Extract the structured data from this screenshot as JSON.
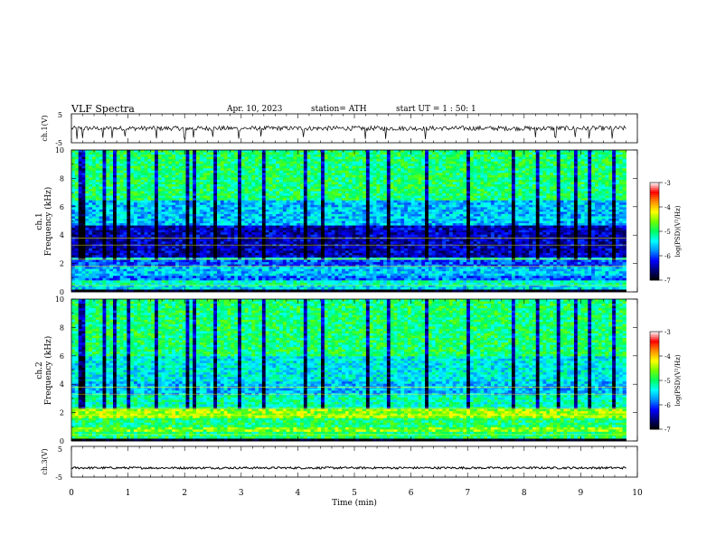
{
  "header": {
    "title": "VLF  Spectra",
    "date": "Apr. 10, 2023",
    "station": "station= ATH",
    "start": "start  UT  =   1  : 50: 1"
  },
  "chart_data": [
    {
      "type": "line",
      "name": "ch1-voltage",
      "ylabel": "ch.1(V)",
      "ylim": [
        -5,
        5
      ],
      "yticks": [
        "5",
        "-5"
      ],
      "xlim": [
        0,
        10
      ],
      "data_end_min": 9.8,
      "baseline": 0.0,
      "noise_amp": 0.8,
      "spikes": [
        0.1,
        0.2,
        0.55,
        0.72,
        0.95,
        1.5,
        2.0,
        2.15,
        2.5,
        2.95,
        3.35,
        4.1,
        5.2,
        5.55,
        6.25,
        8.2,
        8.55,
        8.9,
        9.15,
        9.55
      ],
      "color": "#000000"
    },
    {
      "type": "heatmap",
      "name": "ch1-spectrogram",
      "ylabel": "Frequency (kHz)",
      "channel_label": "ch.1",
      "ylim": [
        0,
        10
      ],
      "yticks": [
        "0",
        "2",
        "4",
        "6",
        "8",
        "10"
      ],
      "xlim": [
        0,
        10
      ],
      "data_end_min": 9.8,
      "bands_khz_to_logpsd": [
        [
          0.0,
          0.2,
          -7.0
        ],
        [
          0.2,
          0.45,
          -5.5
        ],
        [
          0.45,
          0.8,
          -5.2
        ],
        [
          0.8,
          1.2,
          -5.9
        ],
        [
          1.2,
          1.8,
          -5.6
        ],
        [
          1.8,
          2.2,
          -6.0
        ],
        [
          2.2,
          2.5,
          -5.3
        ],
        [
          2.5,
          4.6,
          -6.4
        ],
        [
          4.6,
          6.5,
          -5.6
        ],
        [
          6.5,
          10.0,
          -5.0
        ]
      ],
      "vertical_streaks_min": [
        0.1,
        0.2,
        0.55,
        0.72,
        0.95,
        1.5,
        2.0,
        2.15,
        2.5,
        2.95,
        3.35,
        4.1,
        4.4,
        5.2,
        5.55,
        6.25,
        7.0,
        7.75,
        8.2,
        8.55,
        8.9,
        9.15,
        9.55
      ],
      "colorbar": {
        "label": "log(PSD)(V²/Hz)",
        "range": [
          -7,
          -3
        ],
        "ticks": [
          "-3",
          "-4",
          "-5",
          "-6",
          "-7"
        ]
      }
    },
    {
      "type": "heatmap",
      "name": "ch2-spectrogram",
      "ylabel": "Frequency (kHz)",
      "channel_label": "ch.2",
      "ylim": [
        0,
        10
      ],
      "yticks": [
        "0",
        "2",
        "4",
        "6",
        "8",
        "10"
      ],
      "xlim": [
        0,
        10
      ],
      "data_end_min": 9.8,
      "bands_khz_to_logpsd": [
        [
          0.0,
          0.2,
          -7.0
        ],
        [
          0.2,
          0.6,
          -5.0
        ],
        [
          0.6,
          1.0,
          -4.6
        ],
        [
          1.0,
          1.6,
          -5.0
        ],
        [
          1.6,
          2.2,
          -4.5
        ],
        [
          2.2,
          3.2,
          -5.2
        ],
        [
          3.2,
          4.2,
          -5.6
        ],
        [
          4.2,
          6.0,
          -5.4
        ],
        [
          6.0,
          10.0,
          -5.0
        ]
      ],
      "vertical_streaks_min": [
        0.1,
        0.2,
        0.55,
        0.72,
        0.95,
        1.5,
        2.0,
        2.15,
        2.5,
        2.95,
        3.35,
        4.1,
        4.4,
        5.2,
        5.55,
        6.25,
        7.0,
        7.75,
        8.2,
        8.55,
        8.9,
        9.15,
        9.55
      ],
      "colorbar": {
        "label": "log(PSD)(V²/Hz)",
        "range": [
          -7,
          -3
        ],
        "ticks": [
          "-3",
          "-4",
          "-5",
          "-6",
          "-7"
        ]
      }
    },
    {
      "type": "line",
      "name": "ch3-voltage",
      "ylabel": "ch.3(V)",
      "ylim": [
        -5,
        5
      ],
      "yticks": [
        "5",
        "-5"
      ],
      "xlim": [
        0,
        10
      ],
      "data_end_min": 9.8,
      "baseline": -2.0,
      "noise_amp": 0.35,
      "spikes": [],
      "color": "#000000"
    }
  ],
  "x_axis": {
    "xlabel": "Time  (min)",
    "ticks": [
      "0",
      "1",
      "2",
      "3",
      "4",
      "5",
      "6",
      "7",
      "8",
      "9",
      "10"
    ]
  },
  "colors": {
    "colormap": [
      "#000000",
      "#00007a",
      "#0000ff",
      "#0090ff",
      "#00ffff",
      "#00ff60",
      "#70ff00",
      "#ffff00",
      "#ff9000",
      "#ff0000",
      "#ffffff"
    ]
  }
}
